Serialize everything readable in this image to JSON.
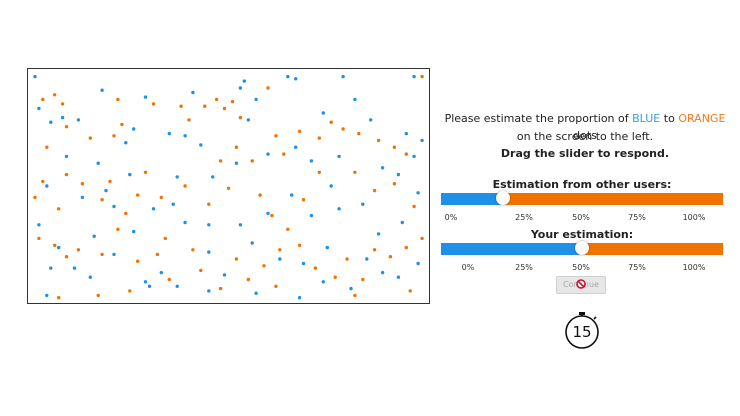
{
  "instructions": {
    "line1_prefix": "Please estimate the proportion of ",
    "blue_word": "BLUE",
    "line1_mid": " to ",
    "orange_word": "ORANGE",
    "line1_suffix": " dots",
    "line2": "on the screen to the left.",
    "line3": "Drag the slider to respond."
  },
  "others_slider": {
    "title": "Estimation from other users:",
    "value_percent": 22,
    "ticks": [
      "0%",
      "25%",
      "50%",
      "75%",
      "100%"
    ]
  },
  "your_slider": {
    "title": "Your estimation:",
    "value_percent": 50,
    "ticks": [
      "0%",
      "25%",
      "50%",
      "75%",
      "100%"
    ]
  },
  "continue_button": {
    "label": "Continue",
    "disabled": true
  },
  "timer": {
    "value": "15"
  },
  "colors": {
    "blue": "#1e90e8",
    "orange": "#f07300",
    "blue_text": "#3a9ad9",
    "orange_text": "#ef7a1a"
  },
  "dots": {
    "blue": [
      [
        0.01,
        0.02
      ],
      [
        0.54,
        0.04
      ],
      [
        0.53,
        0.07
      ],
      [
        0.65,
        0.02
      ],
      [
        0.67,
        0.03
      ],
      [
        0.79,
        0.02
      ],
      [
        0.97,
        0.02
      ],
      [
        0.18,
        0.08
      ],
      [
        0.29,
        0.11
      ],
      [
        0.02,
        0.16
      ],
      [
        0.05,
        0.22
      ],
      [
        0.12,
        0.21
      ],
      [
        0.26,
        0.25
      ],
      [
        0.41,
        0.09
      ],
      [
        0.35,
        0.27
      ],
      [
        0.39,
        0.28
      ],
      [
        0.43,
        0.32
      ],
      [
        0.57,
        0.12
      ],
      [
        0.55,
        0.21
      ],
      [
        0.74,
        0.18
      ],
      [
        0.82,
        0.12
      ],
      [
        0.86,
        0.21
      ],
      [
        0.95,
        0.27
      ],
      [
        0.99,
        0.3
      ],
      [
        0.97,
        0.37
      ],
      [
        0.09,
        0.37
      ],
      [
        0.17,
        0.4
      ],
      [
        0.24,
        0.31
      ],
      [
        0.25,
        0.45
      ],
      [
        0.37,
        0.46
      ],
      [
        0.46,
        0.46
      ],
      [
        0.52,
        0.4
      ],
      [
        0.6,
        0.36
      ],
      [
        0.67,
        0.33
      ],
      [
        0.71,
        0.39
      ],
      [
        0.78,
        0.37
      ],
      [
        0.89,
        0.42
      ],
      [
        0.93,
        0.45
      ],
      [
        0.98,
        0.53
      ],
      [
        0.04,
        0.5
      ],
      [
        0.13,
        0.55
      ],
      [
        0.19,
        0.52
      ],
      [
        0.21,
        0.59
      ],
      [
        0.31,
        0.6
      ],
      [
        0.36,
        0.58
      ],
      [
        0.45,
        0.67
      ],
      [
        0.53,
        0.67
      ],
      [
        0.6,
        0.62
      ],
      [
        0.66,
        0.54
      ],
      [
        0.71,
        0.63
      ],
      [
        0.76,
        0.5
      ],
      [
        0.78,
        0.6
      ],
      [
        0.84,
        0.58
      ],
      [
        0.94,
        0.66
      ],
      [
        0.02,
        0.67
      ],
      [
        0.07,
        0.77
      ],
      [
        0.16,
        0.72
      ],
      [
        0.26,
        0.7
      ],
      [
        0.39,
        0.66
      ],
      [
        0.56,
        0.75
      ],
      [
        0.63,
        0.82
      ],
      [
        0.69,
        0.84
      ],
      [
        0.75,
        0.77
      ],
      [
        0.88,
        0.71
      ],
      [
        0.85,
        0.82
      ],
      [
        0.93,
        0.9
      ],
      [
        0.98,
        0.84
      ],
      [
        0.04,
        0.98
      ],
      [
        0.15,
        0.9
      ],
      [
        0.21,
        0.8
      ],
      [
        0.29,
        0.92
      ],
      [
        0.37,
        0.94
      ],
      [
        0.45,
        0.96
      ],
      [
        0.49,
        0.89
      ],
      [
        0.57,
        0.97
      ],
      [
        0.68,
        0.99
      ],
      [
        0.74,
        0.92
      ],
      [
        0.81,
        0.95
      ],
      [
        0.89,
        0.88
      ],
      [
        0.11,
        0.86
      ],
      [
        0.05,
        0.86
      ],
      [
        0.08,
        0.2
      ],
      [
        0.33,
        0.88
      ],
      [
        0.3,
        0.94
      ],
      [
        0.45,
        0.79
      ]
    ],
    "orange": [
      [
        0.03,
        0.12
      ],
      [
        0.06,
        0.1
      ],
      [
        0.08,
        0.14
      ],
      [
        0.09,
        0.24
      ],
      [
        0.04,
        0.33
      ],
      [
        0.15,
        0.29
      ],
      [
        0.21,
        0.28
      ],
      [
        0.22,
        0.12
      ],
      [
        0.23,
        0.23
      ],
      [
        0.31,
        0.14
      ],
      [
        0.38,
        0.15
      ],
      [
        0.4,
        0.21
      ],
      [
        0.44,
        0.15
      ],
      [
        0.47,
        0.12
      ],
      [
        0.49,
        0.16
      ],
      [
        0.51,
        0.13
      ],
      [
        0.53,
        0.2
      ],
      [
        0.48,
        0.39
      ],
      [
        0.52,
        0.33
      ],
      [
        0.56,
        0.39
      ],
      [
        0.6,
        0.07
      ],
      [
        0.62,
        0.28
      ],
      [
        0.64,
        0.36
      ],
      [
        0.68,
        0.26
      ],
      [
        0.73,
        0.29
      ],
      [
        0.76,
        0.22
      ],
      [
        0.79,
        0.25
      ],
      [
        0.83,
        0.27
      ],
      [
        0.88,
        0.3
      ],
      [
        0.92,
        0.33
      ],
      [
        0.95,
        0.36
      ],
      [
        0.99,
        0.02
      ],
      [
        0.01,
        0.55
      ],
      [
        0.03,
        0.48
      ],
      [
        0.07,
        0.6
      ],
      [
        0.09,
        0.45
      ],
      [
        0.13,
        0.49
      ],
      [
        0.18,
        0.56
      ],
      [
        0.2,
        0.48
      ],
      [
        0.24,
        0.62
      ],
      [
        0.27,
        0.54
      ],
      [
        0.29,
        0.44
      ],
      [
        0.33,
        0.55
      ],
      [
        0.39,
        0.5
      ],
      [
        0.45,
        0.58
      ],
      [
        0.5,
        0.51
      ],
      [
        0.58,
        0.54
      ],
      [
        0.61,
        0.63
      ],
      [
        0.65,
        0.69
      ],
      [
        0.69,
        0.56
      ],
      [
        0.73,
        0.44
      ],
      [
        0.82,
        0.44
      ],
      [
        0.87,
        0.52
      ],
      [
        0.92,
        0.49
      ],
      [
        0.97,
        0.59
      ],
      [
        0.02,
        0.73
      ],
      [
        0.06,
        0.76
      ],
      [
        0.09,
        0.81
      ],
      [
        0.12,
        0.78
      ],
      [
        0.18,
        0.8
      ],
      [
        0.22,
        0.69
      ],
      [
        0.27,
        0.83
      ],
      [
        0.32,
        0.8
      ],
      [
        0.34,
        0.73
      ],
      [
        0.41,
        0.78
      ],
      [
        0.43,
        0.87
      ],
      [
        0.52,
        0.82
      ],
      [
        0.55,
        0.91
      ],
      [
        0.59,
        0.85
      ],
      [
        0.63,
        0.78
      ],
      [
        0.68,
        0.76
      ],
      [
        0.72,
        0.86
      ],
      [
        0.77,
        0.9
      ],
      [
        0.8,
        0.82
      ],
      [
        0.84,
        0.91
      ],
      [
        0.87,
        0.78
      ],
      [
        0.91,
        0.81
      ],
      [
        0.95,
        0.77
      ],
      [
        0.99,
        0.73
      ],
      [
        0.07,
        0.99
      ],
      [
        0.17,
        0.98
      ],
      [
        0.25,
        0.96
      ],
      [
        0.35,
        0.91
      ],
      [
        0.48,
        0.95
      ],
      [
        0.62,
        0.94
      ],
      [
        0.82,
        0.98
      ],
      [
        0.96,
        0.96
      ]
    ]
  }
}
